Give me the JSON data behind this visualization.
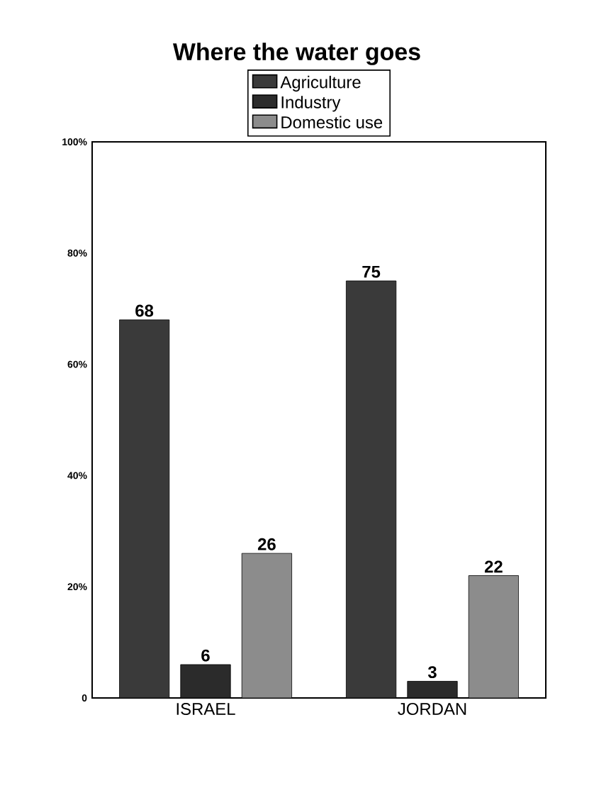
{
  "chart_data": {
    "type": "bar",
    "title": "Where the water goes",
    "categories": [
      "ISRAEL",
      "JORDAN"
    ],
    "series": [
      {
        "name": "Agriculture",
        "color": "#3a3a3a",
        "values": [
          68,
          75
        ]
      },
      {
        "name": "Industry",
        "color": "#2b2b2b",
        "values": [
          6,
          3
        ]
      },
      {
        "name": "Domestic use",
        "color": "#8c8c8c",
        "values": [
          26,
          22
        ]
      }
    ],
    "ylim": [
      0,
      100
    ],
    "yticks": [
      0,
      {
        "value": 20,
        "label": "20%"
      },
      {
        "value": 40,
        "label": "40%"
      },
      {
        "value": 60,
        "label": "60%"
      },
      {
        "value": 80,
        "label": "80%"
      },
      {
        "value": 100,
        "label": "100%"
      }
    ],
    "data_labels": true,
    "legend": "top"
  }
}
